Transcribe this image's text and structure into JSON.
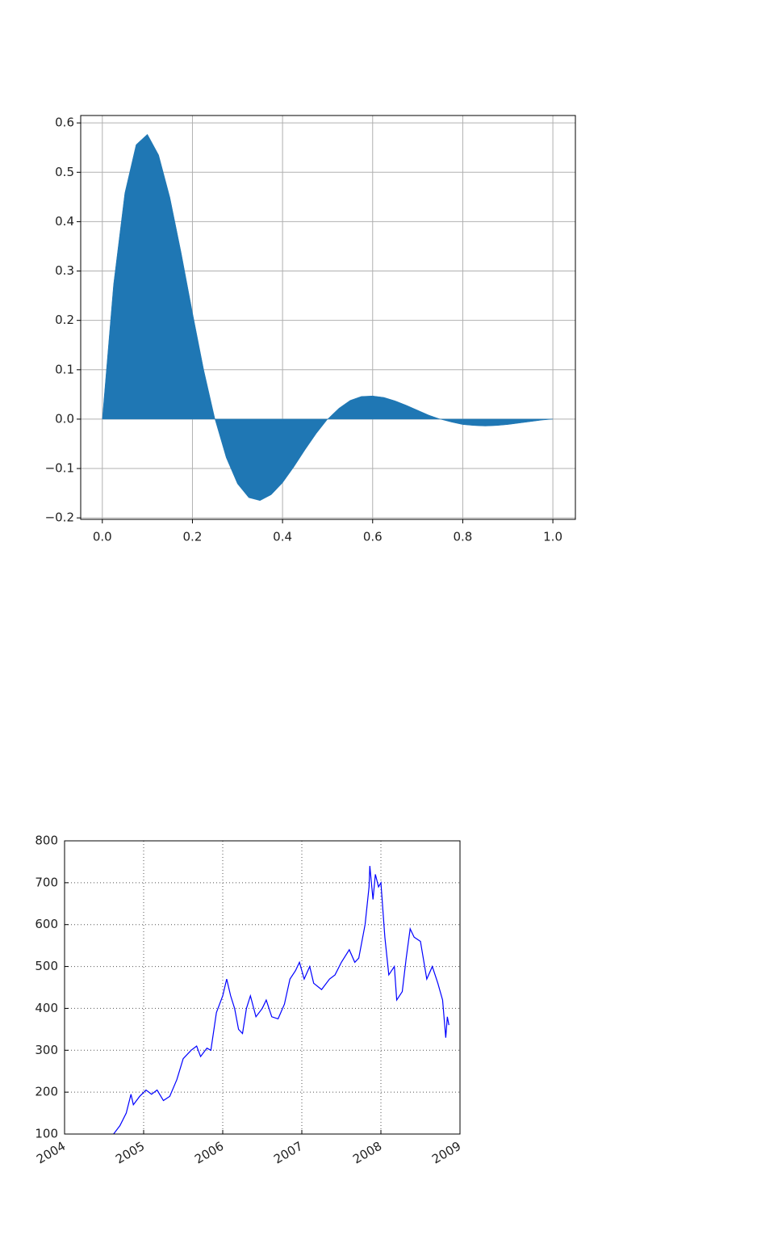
{
  "chart_data": [
    {
      "type": "area",
      "color": "#1f77b4",
      "grid": "solid",
      "x": [
        0,
        0.025,
        0.05,
        0.075,
        0.1,
        0.125,
        0.15,
        0.175,
        0.2,
        0.225,
        0.25,
        0.275,
        0.3,
        0.325,
        0.35,
        0.375,
        0.4,
        0.425,
        0.45,
        0.475,
        0.5,
        0.525,
        0.55,
        0.575,
        0.6,
        0.625,
        0.65,
        0.675,
        0.7,
        0.725,
        0.75,
        0.775,
        0.8,
        0.825,
        0.85,
        0.875,
        0.9,
        0.925,
        0.95,
        0.975,
        1.0
      ],
      "values": [
        0,
        0.273,
        0.458,
        0.556,
        0.577,
        0.535,
        0.449,
        0.337,
        0.216,
        0.1,
        0,
        -0.078,
        -0.131,
        -0.159,
        -0.165,
        -0.153,
        -0.129,
        -0.097,
        -0.062,
        -0.029,
        0,
        0.022,
        0.038,
        0.046,
        0.047,
        0.044,
        0.037,
        0.028,
        0.018,
        0.008,
        0,
        -0.006,
        -0.011,
        -0.013,
        -0.014,
        -0.013,
        -0.011,
        -0.008,
        -0.005,
        -0.002,
        0
      ],
      "xlim": [
        -0.048,
        1.05
      ],
      "ylim": [
        -0.203,
        0.615
      ],
      "xticks": [
        {
          "value": 0,
          "label": "0.0"
        },
        {
          "value": 0.2,
          "label": "0.2"
        },
        {
          "value": 0.4,
          "label": "0.4"
        },
        {
          "value": 0.6,
          "label": "0.6"
        },
        {
          "value": 0.8,
          "label": "0.8"
        },
        {
          "value": 1.0,
          "label": "1.0"
        }
      ],
      "yticks": [
        {
          "value": -0.2,
          "label": "−0.2"
        },
        {
          "value": -0.1,
          "label": "−0.1"
        },
        {
          "value": 0,
          "label": "0.0"
        },
        {
          "value": 0.1,
          "label": "0.1"
        },
        {
          "value": 0.2,
          "label": "0.2"
        },
        {
          "value": 0.3,
          "label": "0.3"
        },
        {
          "value": 0.4,
          "label": "0.4"
        },
        {
          "value": 0.5,
          "label": "0.5"
        },
        {
          "value": 0.6,
          "label": "0.6"
        }
      ]
    },
    {
      "type": "line",
      "color": "#0000ff",
      "grid": "dotted",
      "x": [
        2004.62,
        2004.7,
        2004.78,
        2004.84,
        2004.87,
        2004.95,
        2005.03,
        2005.1,
        2005.17,
        2005.25,
        2005.33,
        2005.42,
        2005.5,
        2005.6,
        2005.67,
        2005.72,
        2005.8,
        2005.85,
        2005.92,
        2006.0,
        2006.05,
        2006.1,
        2006.15,
        2006.2,
        2006.25,
        2006.3,
        2006.35,
        2006.42,
        2006.5,
        2006.55,
        2006.62,
        2006.7,
        2006.78,
        2006.85,
        2006.92,
        2006.97,
        2007.03,
        2007.1,
        2007.15,
        2007.25,
        2007.35,
        2007.42,
        2007.5,
        2007.6,
        2007.67,
        2007.72,
        2007.8,
        2007.85,
        2007.86,
        2007.9,
        2007.93,
        2007.97,
        2008.0,
        2008.05,
        2008.1,
        2008.17,
        2008.2,
        2008.27,
        2008.32,
        2008.37,
        2008.42,
        2008.5,
        2008.58,
        2008.65,
        2008.72,
        2008.78,
        2008.82,
        2008.84,
        2008.86
      ],
      "values": [
        100,
        120,
        150,
        195,
        170,
        190,
        205,
        195,
        205,
        180,
        190,
        230,
        280,
        300,
        310,
        285,
        305,
        300,
        390,
        430,
        470,
        430,
        400,
        350,
        340,
        400,
        430,
        380,
        400,
        420,
        380,
        375,
        410,
        470,
        490,
        510,
        470,
        500,
        460,
        445,
        470,
        480,
        510,
        540,
        510,
        520,
        600,
        690,
        740,
        660,
        720,
        690,
        700,
        570,
        480,
        500,
        420,
        440,
        520,
        590,
        570,
        560,
        470,
        500,
        460,
        420,
        330,
        380,
        360
      ],
      "xlim": [
        2004,
        2009
      ],
      "ylim": [
        100,
        800
      ],
      "xticks": [
        2004,
        2005,
        2006,
        2007,
        2008,
        2009
      ],
      "yticks": [
        100,
        200,
        300,
        400,
        500,
        600,
        700,
        800
      ]
    }
  ]
}
